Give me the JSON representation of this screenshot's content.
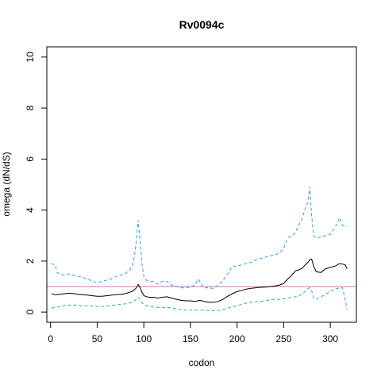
{
  "chart_data": {
    "type": "line",
    "title": "Rv0094c",
    "xlabel": "codon",
    "ylabel": "omega (dN/dS)",
    "xlim": [
      -4,
      328
    ],
    "ylim": [
      -0.4,
      10.4
    ],
    "x_ticks": [
      0,
      50,
      100,
      150,
      200,
      250,
      300
    ],
    "y_ticks": [
      0,
      2,
      4,
      6,
      8,
      10
    ],
    "reference_line": {
      "y": 1,
      "color": "#d36fb4"
    },
    "colors": {
      "mean": "#000000",
      "bounds": "#29a3e3"
    },
    "grid": false,
    "series": [
      {
        "style": "solid",
        "x": [
          1,
          5,
          10,
          15,
          20,
          25,
          30,
          35,
          40,
          45,
          50,
          55,
          60,
          65,
          70,
          75,
          80,
          85,
          88,
          90,
          92,
          94,
          96,
          98,
          100,
          103,
          106,
          110,
          115,
          120,
          125,
          130,
          135,
          140,
          145,
          150,
          155,
          160,
          165,
          170,
          175,
          180,
          185,
          190,
          195,
          200,
          205,
          210,
          215,
          220,
          225,
          230,
          235,
          240,
          245,
          250,
          253,
          256,
          260,
          263,
          266,
          270,
          273,
          276,
          278,
          280,
          282,
          285,
          290,
          295,
          300,
          305,
          310,
          313,
          316,
          318
        ],
        "values": [
          0.72,
          0.68,
          0.7,
          0.72,
          0.74,
          0.72,
          0.7,
          0.68,
          0.66,
          0.64,
          0.62,
          0.62,
          0.64,
          0.66,
          0.68,
          0.7,
          0.72,
          0.78,
          0.82,
          0.88,
          0.95,
          1.08,
          0.95,
          0.78,
          0.65,
          0.6,
          0.58,
          0.58,
          0.55,
          0.58,
          0.6,
          0.55,
          0.5,
          0.46,
          0.44,
          0.44,
          0.42,
          0.46,
          0.42,
          0.38,
          0.38,
          0.42,
          0.5,
          0.62,
          0.72,
          0.8,
          0.85,
          0.9,
          0.93,
          0.95,
          0.97,
          0.98,
          1.0,
          1.02,
          1.05,
          1.12,
          1.25,
          1.35,
          1.5,
          1.62,
          1.65,
          1.72,
          1.85,
          1.95,
          2.05,
          2.08,
          1.8,
          1.58,
          1.55,
          1.7,
          1.75,
          1.8,
          1.9,
          1.88,
          1.85,
          1.7
        ]
      },
      {
        "style": "dashed",
        "x": [
          1,
          5,
          7,
          10,
          15,
          20,
          25,
          30,
          35,
          40,
          45,
          50,
          55,
          60,
          65,
          70,
          75,
          80,
          85,
          88,
          90,
          92,
          94,
          96,
          98,
          100,
          103,
          106,
          110,
          115,
          120,
          125,
          130,
          135,
          140,
          145,
          150,
          155,
          158,
          160,
          163,
          165,
          170,
          175,
          180,
          185,
          190,
          195,
          200,
          205,
          210,
          215,
          220,
          225,
          230,
          235,
          240,
          245,
          250,
          253,
          256,
          260,
          265,
          270,
          273,
          276,
          278,
          280,
          282,
          285,
          290,
          295,
          300,
          305,
          310,
          313,
          316,
          318
        ],
        "values": [
          1.9,
          1.85,
          1.55,
          1.5,
          1.45,
          1.5,
          1.45,
          1.4,
          1.35,
          1.3,
          1.2,
          1.15,
          1.2,
          1.25,
          1.3,
          1.4,
          1.45,
          1.5,
          1.65,
          1.85,
          2.2,
          2.8,
          3.6,
          2.8,
          1.9,
          1.4,
          1.25,
          1.2,
          1.2,
          1.1,
          1.2,
          1.2,
          1.05,
          1.0,
          0.95,
          0.95,
          0.98,
          1.05,
          1.3,
          1.2,
          1.0,
          0.95,
          0.95,
          0.92,
          1.05,
          1.25,
          1.5,
          1.8,
          1.8,
          1.85,
          1.9,
          1.95,
          2.05,
          2.1,
          2.15,
          2.2,
          2.25,
          2.3,
          2.5,
          2.8,
          2.95,
          3.0,
          3.3,
          3.7,
          4.05,
          4.3,
          4.9,
          3.8,
          3.0,
          2.9,
          2.95,
          3.0,
          3.05,
          3.3,
          3.7,
          3.4,
          3.35,
          3.35
        ]
      },
      {
        "style": "dashed",
        "x": [
          1,
          5,
          10,
          15,
          20,
          25,
          30,
          35,
          40,
          45,
          50,
          55,
          60,
          65,
          70,
          75,
          80,
          85,
          88,
          90,
          92,
          94,
          96,
          98,
          100,
          103,
          106,
          110,
          115,
          120,
          125,
          130,
          135,
          140,
          145,
          150,
          155,
          160,
          165,
          170,
          175,
          180,
          185,
          190,
          195,
          200,
          205,
          210,
          215,
          220,
          225,
          230,
          235,
          240,
          245,
          250,
          255,
          260,
          265,
          270,
          273,
          276,
          278,
          280,
          282,
          285,
          290,
          295,
          300,
          305,
          310,
          313,
          316,
          318
        ],
        "values": [
          0.15,
          0.18,
          0.22,
          0.25,
          0.28,
          0.28,
          0.26,
          0.25,
          0.24,
          0.23,
          0.22,
          0.22,
          0.24,
          0.26,
          0.28,
          0.3,
          0.32,
          0.36,
          0.4,
          0.44,
          0.5,
          0.58,
          0.48,
          0.38,
          0.3,
          0.25,
          0.22,
          0.2,
          0.18,
          0.18,
          0.18,
          0.16,
          0.12,
          0.1,
          0.08,
          0.08,
          0.07,
          0.08,
          0.07,
          0.06,
          0.05,
          0.06,
          0.1,
          0.15,
          0.2,
          0.25,
          0.3,
          0.35,
          0.38,
          0.4,
          0.42,
          0.45,
          0.48,
          0.5,
          0.5,
          0.52,
          0.56,
          0.58,
          0.62,
          0.7,
          0.82,
          0.92,
          0.95,
          0.85,
          0.55,
          0.5,
          0.6,
          0.7,
          0.8,
          0.9,
          0.95,
          0.95,
          0.5,
          0.1
        ]
      }
    ]
  }
}
